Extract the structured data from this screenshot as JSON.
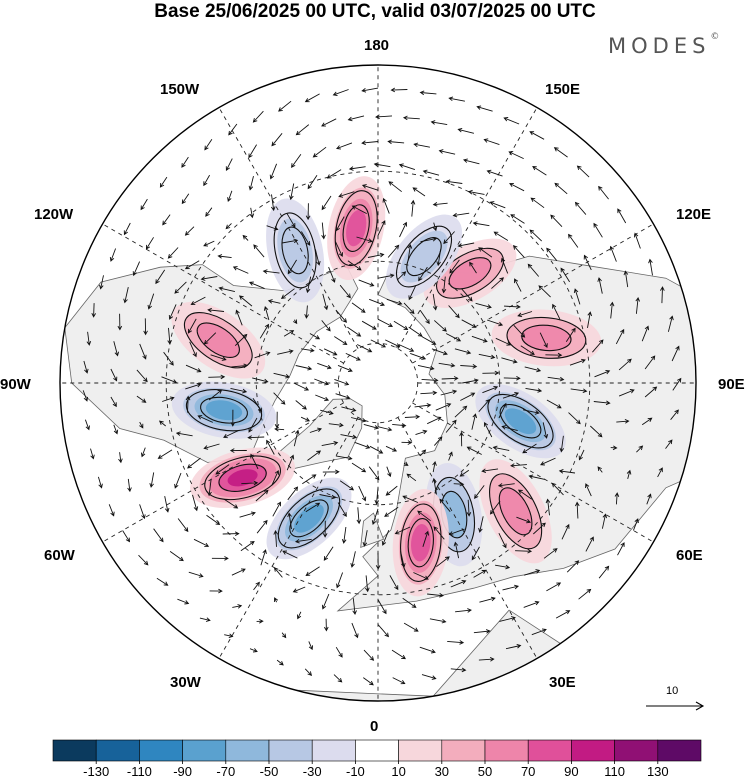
{
  "header": {
    "title": "Base 25/06/2025 00 UTC, valid 03/07/2025 00 UTC",
    "brand": "MODES",
    "brand_mark": "©"
  },
  "map": {
    "projection": "north-polar-stereographic",
    "longitude_labels": {
      "lon_180": "180",
      "lon_150E": "150E",
      "lon_120E": "120E",
      "lon_90E": "90E",
      "lon_60E": "60E",
      "lon_30E": "30E",
      "lon_0": "0",
      "lon_30W": "30W",
      "lon_60W": "60W",
      "lon_90W": "90W",
      "lon_120W": "120W",
      "lon_150W": "150W"
    },
    "reference_vector_label": "10",
    "anomaly_centers": [
      {
        "sign": "negative",
        "strength": 90,
        "lon": 75,
        "lat": 54
      },
      {
        "sign": "positive",
        "strength": 70,
        "lon": 47,
        "lat": 45
      },
      {
        "sign": "negative",
        "strength": 70,
        "lon": 30,
        "lat": 53
      },
      {
        "sign": "positive",
        "strength": 90,
        "lon": 15,
        "lat": 50
      },
      {
        "sign": "negative",
        "strength": 90,
        "lon": -27,
        "lat": 53
      },
      {
        "sign": "positive",
        "strength": 110,
        "lon": -55,
        "lat": 50
      },
      {
        "sign": "negative",
        "strength": 90,
        "lon": -80,
        "lat": 52
      },
      {
        "sign": "positive",
        "strength": 70,
        "lon": -105,
        "lat": 50
      },
      {
        "sign": "positive",
        "strength": 70,
        "lon": 105,
        "lat": 48
      },
      {
        "sign": "positive",
        "strength": 70,
        "lon": 140,
        "lat": 55
      },
      {
        "sign": "negative",
        "strength": 50,
        "lon": 160,
        "lat": 57
      },
      {
        "sign": "positive",
        "strength": 90,
        "lon": -172,
        "lat": 52
      },
      {
        "sign": "negative",
        "strength": 50,
        "lon": -148,
        "lat": 52
      }
    ]
  },
  "colorbar": {
    "tick_labels": [
      "-130",
      "-110",
      "-90",
      "-70",
      "-50",
      "-30",
      "-10",
      "10",
      "30",
      "50",
      "70",
      "90",
      "110",
      "130"
    ],
    "colors": [
      "#0b3a5e",
      "#17629a",
      "#2f86c0",
      "#5aa1cf",
      "#8fb8dc",
      "#b7c8e4",
      "#dcdcee",
      "#ffffff",
      "#f7d7dc",
      "#f3adbd",
      "#ee85aa",
      "#e0509a",
      "#c21b83",
      "#901074",
      "#5e0a66"
    ]
  },
  "colors": {
    "land_fill": "#efefef",
    "coastline": "#666666",
    "graticule": "#222222",
    "vector": "#111111"
  }
}
